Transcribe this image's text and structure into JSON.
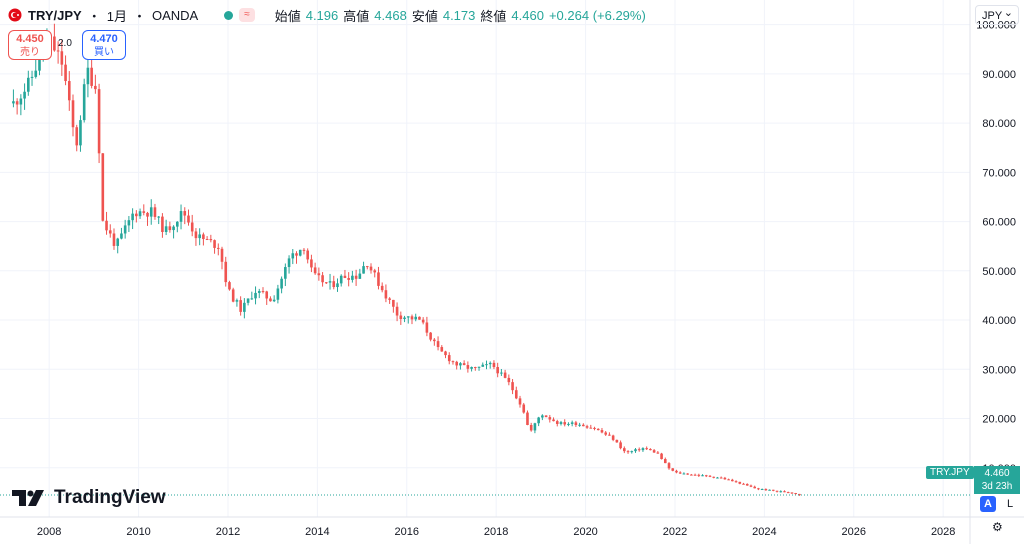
{
  "header": {
    "symbol": "TRY/JPY",
    "sep1": "・",
    "interval": "1月",
    "sep2": "・",
    "broker": "OANDA",
    "badge": "≈",
    "open_label": "始値",
    "open": "4.196",
    "high_label": "高値",
    "high": "4.468",
    "low_label": "安値",
    "low": "4.173",
    "close_label": "終値",
    "close": "4.460",
    "change": "+0.264 (+6.29%)"
  },
  "trade": {
    "sell_price": "4.450",
    "sell_label": "売り",
    "spread": "2.0",
    "buy_price": "4.470",
    "buy_label": "買い"
  },
  "currency_button": "JPY",
  "logo_text": "TradingView",
  "last_price_tag": {
    "symbol": "TRY.JPY",
    "price": "4.460",
    "countdown": "3d 23h"
  },
  "controls": {
    "auto": "A",
    "log": "L"
  },
  "colors": {
    "up": "#26a69a",
    "down": "#ef5350",
    "grid": "#f0f3fa",
    "text": "#131722"
  },
  "chart_data": {
    "type": "candlestick",
    "y_tick_labels": [
      "100.000",
      "90.000",
      "80.000",
      "70.000",
      "60.000",
      "50.000",
      "40.000",
      "30.000",
      "20.000",
      "10.000"
    ],
    "y_ticks": [
      100,
      90,
      80,
      70,
      60,
      50,
      40,
      30,
      20,
      10
    ],
    "ylim": [
      0,
      105
    ],
    "x_tick_labels": [
      "2008",
      "2010",
      "2012",
      "2014",
      "2016",
      "2018",
      "2020",
      "2022",
      "2024",
      "2026",
      "2028"
    ],
    "x_ticks": [
      2008,
      2010,
      2012,
      2014,
      2016,
      2018,
      2020,
      2022,
      2024,
      2026,
      2028
    ],
    "xlim": [
      2006.9,
      2028.6
    ],
    "last_price": 4.46,
    "keypoints": [
      [
        2007.2,
        84
      ],
      [
        2007.55,
        88
      ],
      [
        2007.9,
        96
      ],
      [
        2008.0,
        97
      ],
      [
        2008.3,
        92
      ],
      [
        2008.6,
        75
      ],
      [
        2008.85,
        91
      ],
      [
        2009.05,
        87
      ],
      [
        2009.2,
        60
      ],
      [
        2009.5,
        55
      ],
      [
        2009.9,
        62
      ],
      [
        2010.3,
        62
      ],
      [
        2010.6,
        58
      ],
      [
        2011.0,
        62
      ],
      [
        2011.3,
        57
      ],
      [
        2011.8,
        55
      ],
      [
        2012.0,
        46
      ],
      [
        2012.3,
        42
      ],
      [
        2012.6,
        46
      ],
      [
        2013.0,
        44
      ],
      [
        2013.4,
        53
      ],
      [
        2013.7,
        55
      ],
      [
        2013.9,
        49
      ],
      [
        2014.3,
        47
      ],
      [
        2014.6,
        49
      ],
      [
        2014.9,
        49
      ],
      [
        2015.1,
        52
      ],
      [
        2015.4,
        47
      ],
      [
        2015.8,
        41
      ],
      [
        2016.3,
        40
      ],
      [
        2016.7,
        34
      ],
      [
        2017.1,
        31
      ],
      [
        2017.5,
        30
      ],
      [
        2017.9,
        31
      ],
      [
        2018.3,
        27
      ],
      [
        2018.6,
        22
      ],
      [
        2018.75,
        17
      ],
      [
        2019.0,
        21
      ],
      [
        2019.4,
        19
      ],
      [
        2019.8,
        19
      ],
      [
        2020.2,
        18
      ],
      [
        2020.6,
        16
      ],
      [
        2020.9,
        13
      ],
      [
        2021.3,
        14
      ],
      [
        2021.6,
        13
      ],
      [
        2021.85,
        10
      ],
      [
        2022.0,
        9
      ],
      [
        2022.5,
        8.5
      ],
      [
        2023.0,
        8
      ],
      [
        2023.4,
        7
      ],
      [
        2023.8,
        5.8
      ],
      [
        2024.3,
        5.2
      ],
      [
        2024.6,
        5.0
      ],
      [
        2024.8,
        4.46
      ]
    ]
  }
}
